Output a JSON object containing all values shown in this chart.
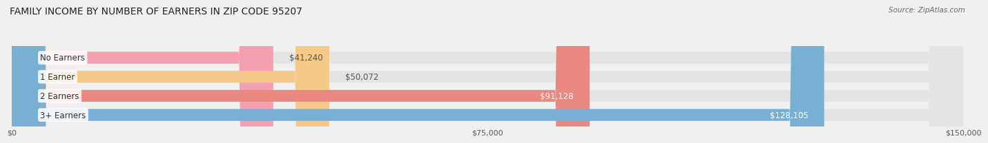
{
  "title": "FAMILY INCOME BY NUMBER OF EARNERS IN ZIP CODE 95207",
  "source": "Source: ZipAtlas.com",
  "categories": [
    "No Earners",
    "1 Earner",
    "2 Earners",
    "3+ Earners"
  ],
  "values": [
    41240,
    50072,
    91128,
    128105
  ],
  "bar_colors": [
    "#f4a0b0",
    "#f5c98a",
    "#e98880",
    "#7aafd4"
  ],
  "label_colors": [
    "#555555",
    "#555555",
    "#ffffff",
    "#ffffff"
  ],
  "value_labels": [
    "$41,240",
    "$50,072",
    "$91,128",
    "$128,105"
  ],
  "x_ticks": [
    0,
    75000,
    150000
  ],
  "x_tick_labels": [
    "$0",
    "$75,000",
    "$150,000"
  ],
  "xlim": [
    0,
    150000
  ],
  "background_color": "#f0f0f0",
  "bar_background_color": "#e4e4e4",
  "title_fontsize": 10,
  "source_fontsize": 7.5,
  "bar_height": 0.62,
  "label_fontsize": 8.5
}
